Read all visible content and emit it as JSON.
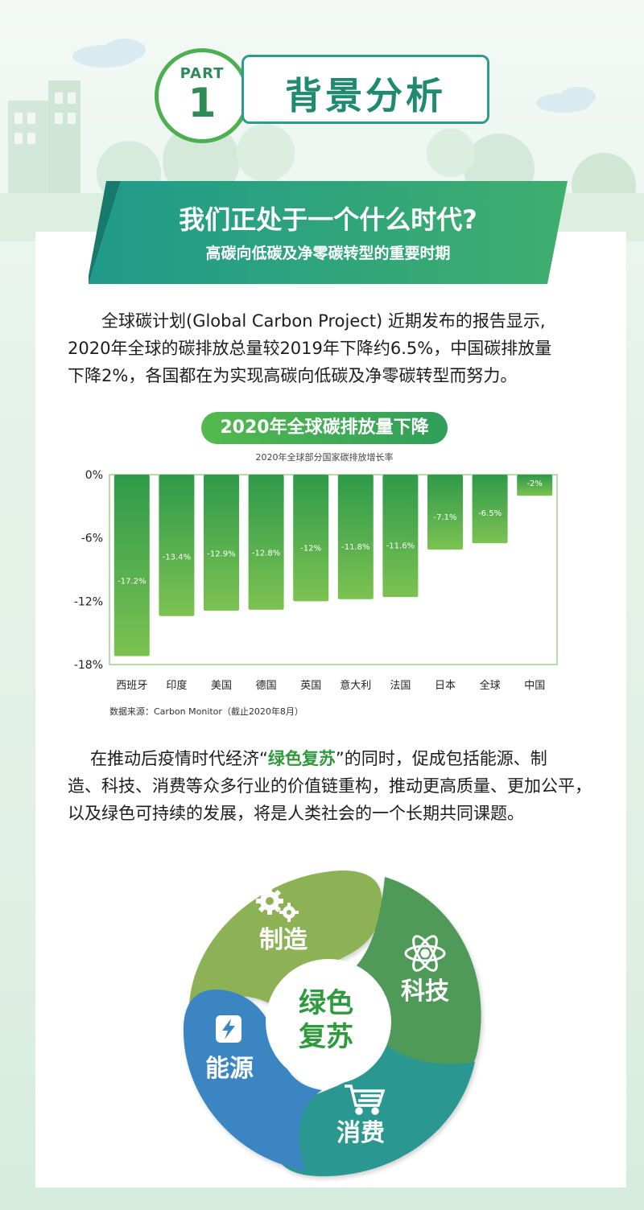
{
  "header": {
    "part_label": "PART",
    "part_number": "1",
    "title": "背景分析"
  },
  "banner": {
    "title": "我们正处于一个什么时代?",
    "subtitle": "高碳向低碳及净零碳转型的重要时期"
  },
  "para1": {
    "line1": "全球碳计划(Global Carbon Project) 近期发布的报告显示,",
    "line2": "2020年全球的碳排放总量较2019年下降约6.5%，中国碳排放量",
    "line3": "下降2%，各国都在为实现高碳向低碳及净零碳转型而努力。"
  },
  "chart_data": {
    "type": "bar",
    "title": "2020年全球碳排放量下降",
    "subtitle": "2020年全球部分国家碳排放增长率",
    "categories": [
      "西班牙",
      "印度",
      "美国",
      "德国",
      "英国",
      "意大利",
      "法国",
      "日本",
      "全球",
      "中国"
    ],
    "values": [
      -17.2,
      -13.4,
      -12.9,
      -12.8,
      -12,
      -11.8,
      -11.6,
      -7.1,
      -6.5,
      -2
    ],
    "value_labels": [
      "-17.2%",
      "-13.4%",
      "-12.9%",
      "-12.8%",
      "-12%",
      "-11.8%",
      "-11.6%",
      "-7.1%",
      "-6.5%",
      "-2%"
    ],
    "ylim": [
      -18,
      0
    ],
    "yticks": [
      0,
      -6,
      -12,
      -18
    ],
    "ytick_labels": [
      "0%",
      "-6%",
      "-12%",
      "-18%"
    ],
    "colors": {
      "bar_top": "#2e9a4a",
      "bar_bottom": "#7cc251"
    },
    "source": "数据来源：Carbon Monitor（截止2020年8月）"
  },
  "para2": {
    "line1_pre": "在推动后疫情时代经济“",
    "line1_hl": "绿色复苏",
    "line1_post": "”的同时，促成包括能源、制",
    "line2": "造、科技、消费等众多行业的价值链重构，推动更高质量、更加公平，",
    "line3": "以及绿色可持续的发展，将是人类社会的一个长期共同课题。"
  },
  "wheel": {
    "center_line1": "绿色",
    "center_line2": "复苏",
    "segments": [
      {
        "label": "制造",
        "icon": "gears-icon",
        "color": "#8db255"
      },
      {
        "label": "科技",
        "icon": "atom-icon",
        "color": "#4a9a5a"
      },
      {
        "label": "消费",
        "icon": "cart-icon",
        "color": "#2b9890"
      },
      {
        "label": "能源",
        "icon": "lightning-icon",
        "color": "#3a86c2"
      }
    ]
  }
}
